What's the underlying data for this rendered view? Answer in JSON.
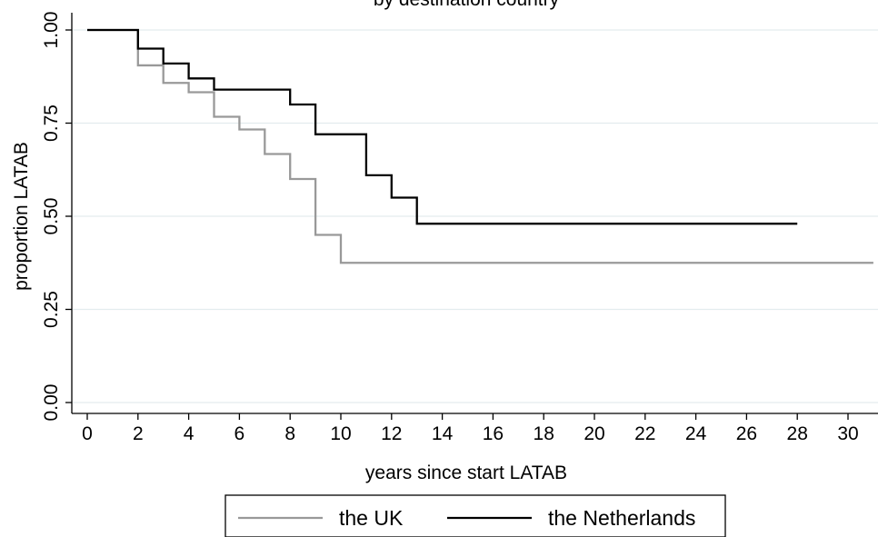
{
  "chart_data": {
    "type": "line",
    "title": "by destination country",
    "xlabel": "years since start LATAB",
    "ylabel": "proportion LATAB",
    "xlim": [
      0,
      31
    ],
    "ylim": [
      0,
      1
    ],
    "xticks": [
      0,
      2,
      4,
      6,
      8,
      10,
      12,
      14,
      16,
      18,
      20,
      22,
      24,
      26,
      28,
      30
    ],
    "xtick_labels": [
      "0",
      "2",
      "4",
      "6",
      "8",
      "10",
      "12",
      "14",
      "16",
      "18",
      "20",
      "22",
      "24",
      "26",
      "28",
      "30"
    ],
    "yticks": [
      0,
      0.25,
      0.5,
      0.75,
      1
    ],
    "ytick_labels": [
      "0.00",
      "0.25",
      "0.50",
      "0.75",
      "1.00"
    ],
    "grid": "horizontal",
    "legend_position": "bottom",
    "step": true,
    "series": [
      {
        "name": "the UK",
        "color": "#999999",
        "x": [
          0,
          2,
          3,
          4,
          5,
          6,
          7,
          8,
          9,
          10,
          31
        ],
        "y": [
          1.0,
          0.905,
          0.858,
          0.833,
          0.767,
          0.733,
          0.667,
          0.6,
          0.45,
          0.375,
          0.375
        ]
      },
      {
        "name": "the Netherlands",
        "color": "#000000",
        "x": [
          0,
          2,
          3,
          4,
          5,
          8,
          9,
          11,
          12,
          13,
          28
        ],
        "y": [
          1.0,
          0.95,
          0.91,
          0.87,
          0.84,
          0.8,
          0.72,
          0.61,
          0.55,
          0.48,
          0.48
        ]
      }
    ]
  }
}
